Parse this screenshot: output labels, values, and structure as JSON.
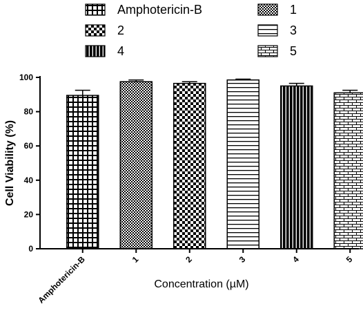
{
  "chart_data": {
    "type": "bar",
    "title": "",
    "xlabel": "Concentration (µM)",
    "ylabel": "Cell Viability (%)",
    "ylim": [
      0,
      100
    ],
    "yticks": [
      0,
      20,
      40,
      60,
      80,
      100
    ],
    "categories": [
      "Amphotericin-B",
      "1",
      "2",
      "3",
      "4",
      "5"
    ],
    "values": [
      89.5,
      97.5,
      96.5,
      98.5,
      95,
      91
    ],
    "errors": [
      3,
      1,
      1,
      0.5,
      1.5,
      1.5
    ],
    "grid": false,
    "legend": {
      "position": "top",
      "entries": [
        "Amphotericin-B",
        "1",
        "2",
        "3",
        "4",
        "5"
      ]
    },
    "patterns": [
      "grid",
      "fine-check",
      "checkerboard",
      "horizontal-lines",
      "vertical-lines",
      "bricks"
    ]
  }
}
